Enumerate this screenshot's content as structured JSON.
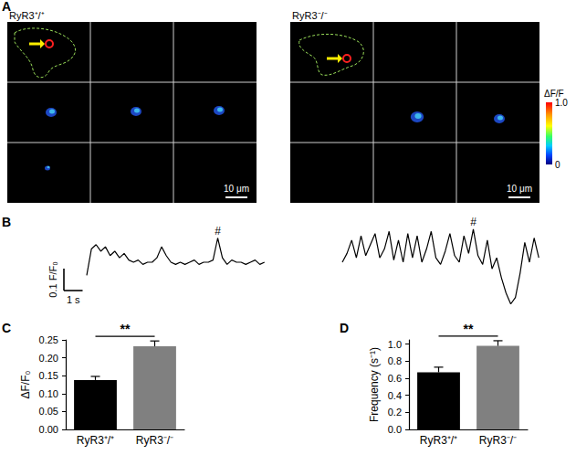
{
  "panel_labels": [
    "A",
    "B",
    "C",
    "D"
  ],
  "images": {
    "titles": [
      "RyR3⁺/⁺",
      "RyR3⁻/⁻"
    ],
    "scale_bar": "10 μm",
    "colorbar": {
      "title": "ΔF/F",
      "range": [
        0,
        1
      ],
      "ticks": [
        0,
        {
          "value": 1,
          "label": "1.0"
        }
      ]
    }
  },
  "chart_data": [
    {
      "type": "line",
      "x": [
        0,
        0.25,
        0.5,
        0.75,
        1,
        1.25,
        1.5,
        1.75,
        2,
        2.25,
        2.5,
        2.75,
        3,
        3.25,
        3.5,
        3.75,
        4,
        4.25,
        4.5,
        4.75,
        5,
        5.25,
        5.5,
        5.75,
        6,
        6.25,
        6.5,
        6.75,
        7,
        7.25,
        7.5,
        7.75,
        8,
        8.25,
        8.5,
        8.75,
        9,
        9.25,
        9.5
      ],
      "values": [
        0.94,
        1.06,
        1.08,
        1.05,
        1.07,
        1.03,
        1.05,
        1.02,
        1.04,
        1.01,
        1.0,
        1.01,
        0.99,
        1.0,
        1.0,
        1.02,
        1.07,
        1.03,
        1.0,
        0.99,
        1.0,
        0.99,
        1.0,
        1.01,
        0.99,
        1.0,
        1.0,
        1.01,
        1.11,
        1.02,
        0.99,
        1.01,
        1.0,
        1.0,
        0.99,
        1.0,
        1.01,
        0.99,
        1.0
      ],
      "color": "#000000",
      "xlim": [
        0,
        9.5
      ],
      "ylim": [
        0.78,
        1.22
      ],
      "tick_labels": false,
      "annotations": [
        {
          "x": 7,
          "text": "#"
        }
      ],
      "scale_bar": {
        "x": 1,
        "x_label": "1 s",
        "y": 0.1,
        "y_label": "0.1 F/F₀"
      }
    },
    {
      "type": "line",
      "x": [
        0,
        0.25,
        0.5,
        0.75,
        1,
        1.25,
        1.5,
        1.75,
        2,
        2.25,
        2.5,
        2.75,
        3,
        3.25,
        3.5,
        3.75,
        4,
        4.25,
        4.5,
        4.75,
        5,
        5.25,
        5.5,
        5.75,
        6,
        6.25,
        6.5,
        6.75,
        7,
        7.25,
        7.5,
        7.75,
        8,
        8.25,
        8.5,
        8.75,
        9,
        9.25,
        9.5,
        9.75,
        10,
        10.25,
        10.5
      ],
      "values": [
        1.0,
        1.04,
        1.1,
        1.02,
        1.12,
        1.03,
        1.08,
        1.13,
        1.02,
        1.06,
        1.14,
        1.01,
        1.1,
        1.0,
        1.13,
        1.02,
        1.12,
        1.0,
        1.06,
        1.14,
        1.02,
        0.99,
        1.05,
        1.13,
        1.03,
        1.0,
        1.12,
        1.04,
        1.15,
        1.03,
        0.99,
        1.1,
        0.97,
        1.02,
        0.93,
        0.86,
        0.81,
        0.84,
        0.95,
        1.09,
        1.0,
        1.11,
        1.02
      ],
      "color": "#000000",
      "xlim": [
        0,
        10.5
      ],
      "ylim": [
        0.78,
        1.22
      ],
      "tick_labels": false,
      "annotations": [
        {
          "x": 7,
          "text": "#"
        }
      ]
    },
    {
      "type": "bar",
      "categories": [
        "RyR3⁺/⁺",
        "RyR3⁻/⁻"
      ],
      "values": [
        0.138,
        0.232
      ],
      "errors": [
        0.01,
        0.015
      ],
      "colors": [
        "#000000",
        "#808080"
      ],
      "ylabel": "ΔF/F₀",
      "ylim": [
        0,
        0.25
      ],
      "yticks": [
        {
          "value": 0,
          "label": "0.00"
        },
        {
          "value": 0.05,
          "label": "0.05"
        },
        {
          "value": 0.1,
          "label": "0.10"
        },
        {
          "value": 0.15,
          "label": "0.15"
        },
        {
          "value": 0.2,
          "label": "0.20"
        },
        {
          "value": 0.25,
          "label": "0.25"
        }
      ],
      "grid": false,
      "annotations": [
        {
          "text": "**"
        }
      ]
    },
    {
      "type": "bar",
      "categories": [
        "RyR3⁺/⁺",
        "RyR3⁻/⁻"
      ],
      "values": [
        0.67,
        0.98
      ],
      "errors": [
        0.06,
        0.06
      ],
      "colors": [
        "#000000",
        "#808080"
      ],
      "ylabel": "Frequency (s⁻¹)",
      "ylim": [
        0,
        1.05
      ],
      "yticks": [
        {
          "value": 0,
          "label": "0.0"
        },
        {
          "value": 0.2,
          "label": "0.2"
        },
        {
          "value": 0.4,
          "label": "0.4"
        },
        {
          "value": 0.6,
          "label": "0.6"
        },
        {
          "value": 0.8,
          "label": "0.8"
        },
        {
          "value": 1,
          "label": "1.0"
        }
      ],
      "grid": false,
      "annotations": [
        {
          "text": "**"
        }
      ]
    }
  ]
}
